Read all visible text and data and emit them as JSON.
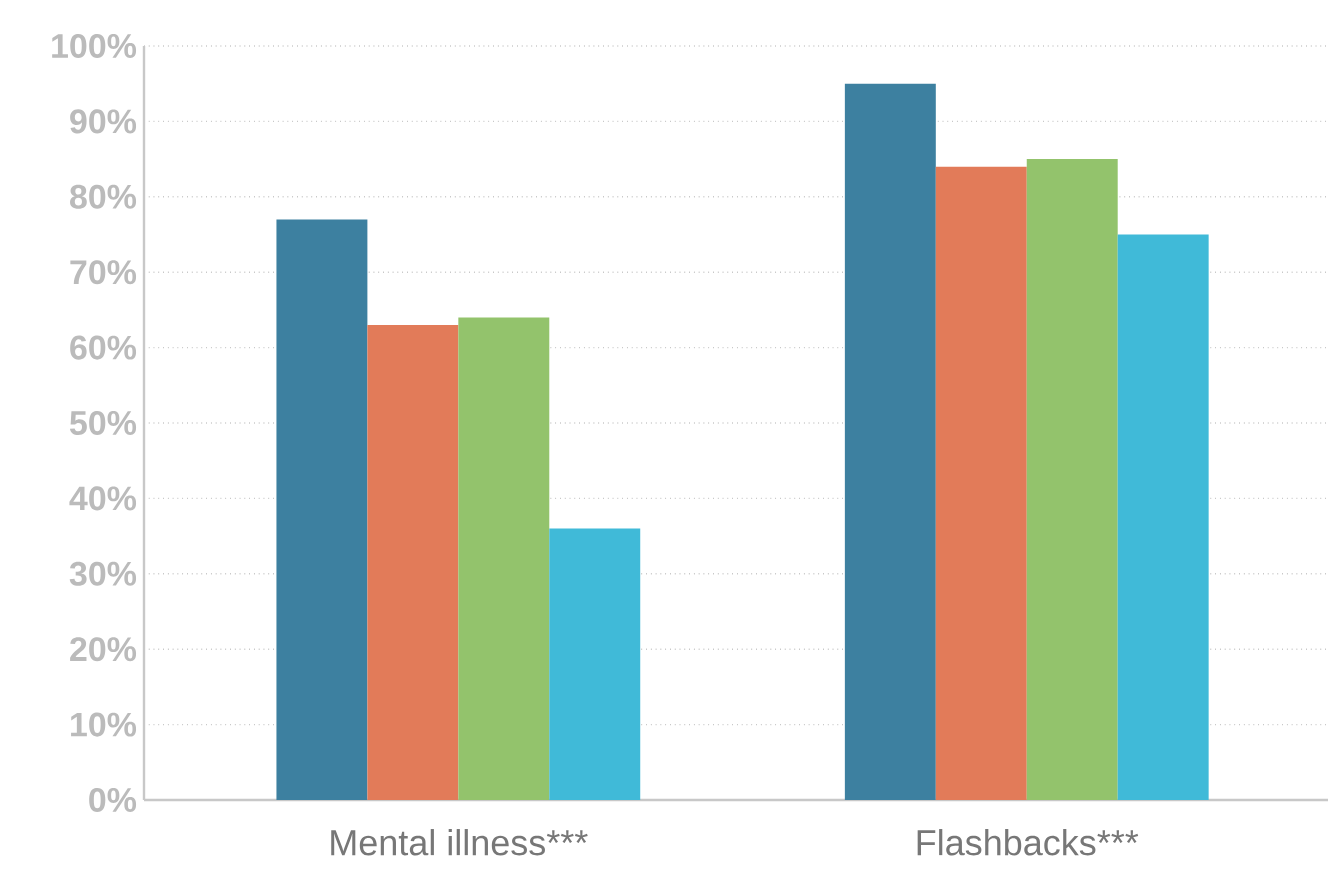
{
  "chart_data": {
    "type": "bar",
    "categories": [
      "Mental illness***",
      "Flashbacks***"
    ],
    "series": [
      {
        "color": "#3d80a0",
        "values": [
          77,
          95
        ]
      },
      {
        "color": "#e27b59",
        "values": [
          63,
          84
        ]
      },
      {
        "color": "#93c36c",
        "values": [
          64,
          85
        ]
      },
      {
        "color": "#40bad8",
        "values": [
          36,
          75
        ]
      }
    ],
    "ylim": [
      0,
      100
    ],
    "yticks": [
      {
        "value": 0,
        "label": "0%"
      },
      {
        "value": 10,
        "label": "10%"
      },
      {
        "value": 20,
        "label": "20%"
      },
      {
        "value": 30,
        "label": "30%"
      },
      {
        "value": 40,
        "label": "40%"
      },
      {
        "value": 50,
        "label": "50%"
      },
      {
        "value": 60,
        "label": "60%"
      },
      {
        "value": 70,
        "label": "70%"
      },
      {
        "value": 80,
        "label": "80%"
      },
      {
        "value": 90,
        "label": "90%"
      },
      {
        "value": 100,
        "label": "100%"
      }
    ],
    "grid": "y"
  }
}
